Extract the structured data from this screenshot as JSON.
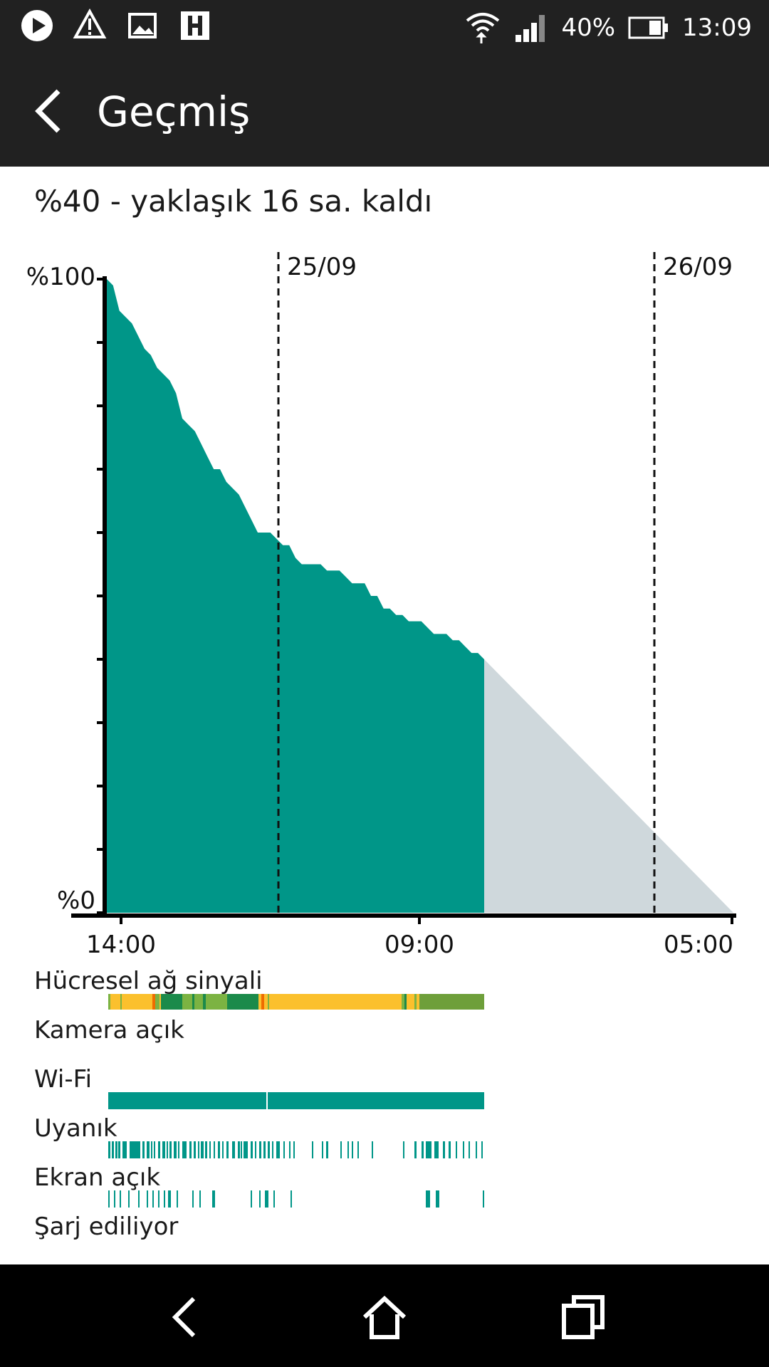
{
  "status_bar": {
    "left_icons": [
      "play-icon",
      "alert-icon",
      "image-icon",
      "h-app-icon"
    ],
    "battery_percent": "40%",
    "time": "13:09"
  },
  "app_bar": {
    "title": "Geçmiş"
  },
  "summary": "%40 - yaklaşık 16 sa. kaldı",
  "chart_data": {
    "type": "area",
    "ylabels": {
      "top": "%100",
      "bottom": "%0"
    },
    "date_markers": [
      "25/09",
      "26/09"
    ],
    "x_tick_labels": [
      "14:00",
      "09:00",
      "05:00"
    ],
    "series": [
      {
        "values": [
          100,
          99,
          95,
          94,
          93,
          91,
          89,
          88,
          86,
          85,
          84,
          82,
          78,
          77,
          76,
          74,
          72,
          70,
          70,
          68,
          67,
          66,
          64,
          62,
          60,
          60,
          60,
          59,
          58,
          58,
          56,
          55,
          55,
          55,
          55,
          54,
          54,
          54,
          53,
          52,
          52,
          52,
          50,
          50,
          48,
          48,
          47,
          47,
          46,
          46,
          46,
          45,
          44,
          44,
          44,
          43,
          43,
          42,
          41,
          41,
          40
        ]
      },
      {
        "values": [
          40,
          0
        ]
      }
    ],
    "ylim": [
      0,
      100
    ],
    "colors": {
      "history": "#009688",
      "prediction": "#cfd8dc"
    }
  },
  "rows": [
    {
      "label": "Hücresel ağ sinyali"
    },
    {
      "label": "Kamera açık"
    },
    {
      "label": "Wi-Fi"
    },
    {
      "label": "Uyanık"
    },
    {
      "label": "Ekran açık"
    },
    {
      "label": "Şarj ediliyor"
    }
  ],
  "colors": {
    "bar_dark": "#212121",
    "teal": "#009688",
    "signal_yellow": "#fbc02d",
    "signal_green": "#7cb342",
    "signal_dark_green": "#1b8a4a",
    "signal_orange": "#ef6c00"
  },
  "nav": [
    "back-icon",
    "home-icon",
    "recents-icon"
  ]
}
